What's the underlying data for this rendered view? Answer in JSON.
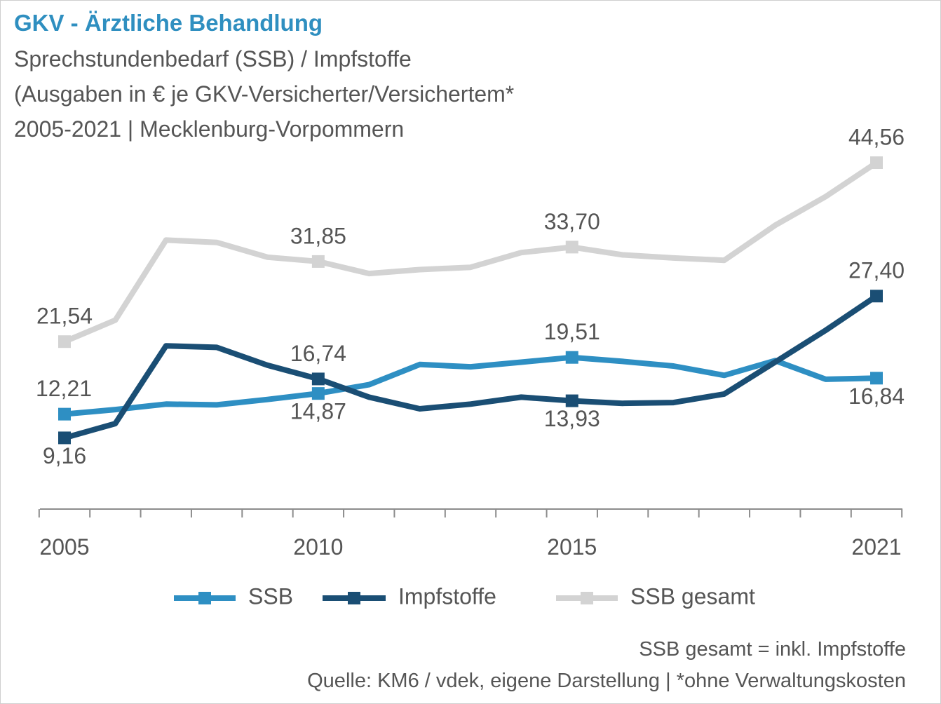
{
  "header": {
    "title": "GKV - Ärztliche Behandlung",
    "subtitle1": "Sprechstundenbedarf (SSB) / Impfstoffe",
    "subtitle2": "(Ausgaben in € je GKV-Versicherter/Versichertem*",
    "subtitle3": "2005-2021 | Mecklenburg-Vorpommern"
  },
  "footer": {
    "note": "SSB gesamt = inkl. Impfstoffe",
    "source": "Quelle: KM6 / vdek, eigene Darstellung | *ohne Verwaltungskosten"
  },
  "chart_data": {
    "type": "line",
    "x": [
      2005,
      2006,
      2007,
      2008,
      2009,
      2010,
      2011,
      2012,
      2013,
      2014,
      2015,
      2016,
      2017,
      2018,
      2019,
      2020,
      2021
    ],
    "x_tick_labels": [
      "2005",
      "2010",
      "2015",
      "2021"
    ],
    "ylim": [
      0,
      50
    ],
    "grid": false,
    "legend_position": "bottom",
    "series": [
      {
        "name": "SSB",
        "color": "#2e8fc3",
        "values": [
          12.21,
          12.8,
          13.5,
          13.4,
          14.1,
          14.87,
          16.0,
          18.6,
          18.3,
          18.9,
          19.51,
          19.0,
          18.4,
          17.2,
          19.1,
          16.7,
          16.84
        ],
        "labels": [
          {
            "x": 2005,
            "text": "12,21"
          },
          {
            "x": 2010,
            "text": "14,87"
          },
          {
            "x": 2015,
            "text": "19,51"
          },
          {
            "x": 2021,
            "text": "16,84"
          }
        ]
      },
      {
        "name": "Impfstoffe",
        "color": "#1a4e74",
        "values": [
          9.16,
          11.0,
          21.0,
          20.8,
          18.5,
          16.74,
          14.4,
          12.9,
          13.5,
          14.4,
          13.93,
          13.6,
          13.7,
          14.8,
          18.9,
          23.0,
          27.4
        ],
        "labels": [
          {
            "x": 2005,
            "text": "9,16"
          },
          {
            "x": 2010,
            "text": "16,74"
          },
          {
            "x": 2015,
            "text": "13,93"
          },
          {
            "x": 2021,
            "text": "27,40"
          }
        ]
      },
      {
        "name": "SSB gesamt",
        "color": "#d3d3d3",
        "values": [
          21.54,
          24.3,
          34.6,
          34.3,
          32.4,
          31.85,
          30.3,
          30.8,
          31.1,
          33.0,
          33.7,
          32.7,
          32.3,
          32.0,
          36.5,
          40.2,
          44.56
        ],
        "labels": [
          {
            "x": 2005,
            "text": "21,54"
          },
          {
            "x": 2010,
            "text": "31,85"
          },
          {
            "x": 2015,
            "text": "33,70"
          },
          {
            "x": 2021,
            "text": "44,56"
          }
        ]
      }
    ]
  }
}
